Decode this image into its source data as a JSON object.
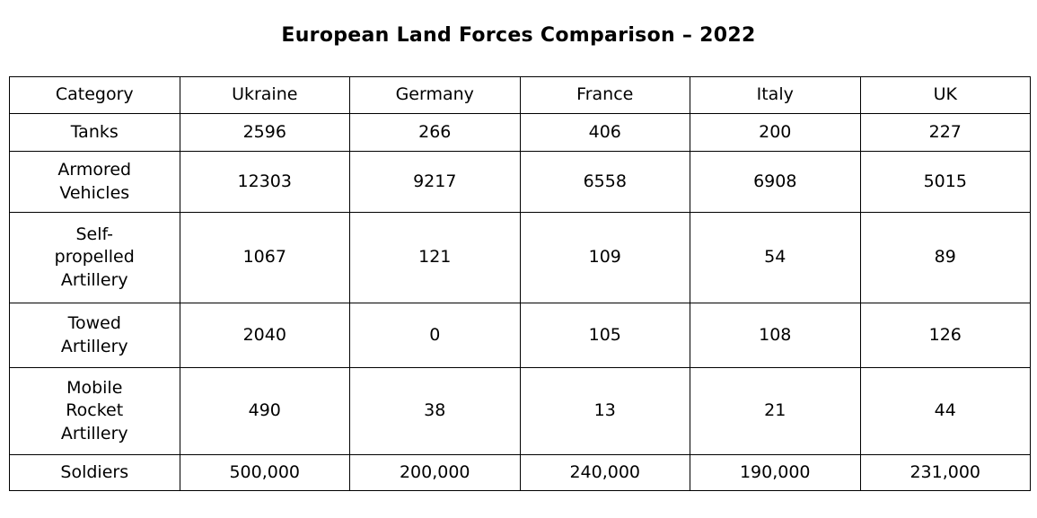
{
  "title": "European Land Forces Comparison – 2022",
  "table": {
    "columns": [
      "Category",
      "Ukraine",
      "Germany",
      "France",
      "Italy",
      "UK"
    ],
    "rows": [
      {
        "category": "Tanks",
        "values": [
          "2596",
          "266",
          "406",
          "200",
          "227"
        ]
      },
      {
        "category": "Armored\nVehicles",
        "values": [
          "12303",
          "9217",
          "6558",
          "6908",
          "5015"
        ]
      },
      {
        "category": "Self-\npropelled\nArtillery",
        "values": [
          "1067",
          "121",
          "109",
          "54",
          "89"
        ]
      },
      {
        "category": "Towed\nArtillery",
        "values": [
          "2040",
          "0",
          "105",
          "108",
          "126"
        ]
      },
      {
        "category": "Mobile\nRocket\nArtillery",
        "values": [
          "490",
          "38",
          "13",
          "21",
          "44"
        ]
      },
      {
        "category": "Soldiers",
        "values": [
          "500,000",
          "200,000",
          "240,000",
          "190,000",
          "231,000"
        ]
      }
    ]
  },
  "chart_data": {
    "type": "table",
    "title": "European Land Forces Comparison – 2022",
    "columns": [
      "Category",
      "Ukraine",
      "Germany",
      "France",
      "Italy",
      "UK"
    ],
    "rows": [
      [
        "Tanks",
        2596,
        266,
        406,
        200,
        227
      ],
      [
        "Armored Vehicles",
        12303,
        9217,
        6558,
        6908,
        5015
      ],
      [
        "Self-propelled Artillery",
        1067,
        121,
        109,
        54,
        89
      ],
      [
        "Towed Artillery",
        2040,
        0,
        105,
        108,
        126
      ],
      [
        "Mobile Rocket Artillery",
        490,
        38,
        13,
        21,
        44
      ],
      [
        "Soldiers",
        500000,
        200000,
        240000,
        190000,
        231000
      ]
    ],
    "colors": {
      "text": "#000000",
      "border": "#000000",
      "background": "#ffffff"
    },
    "layout": {
      "grid": true,
      "all_cells_centered": true
    }
  }
}
